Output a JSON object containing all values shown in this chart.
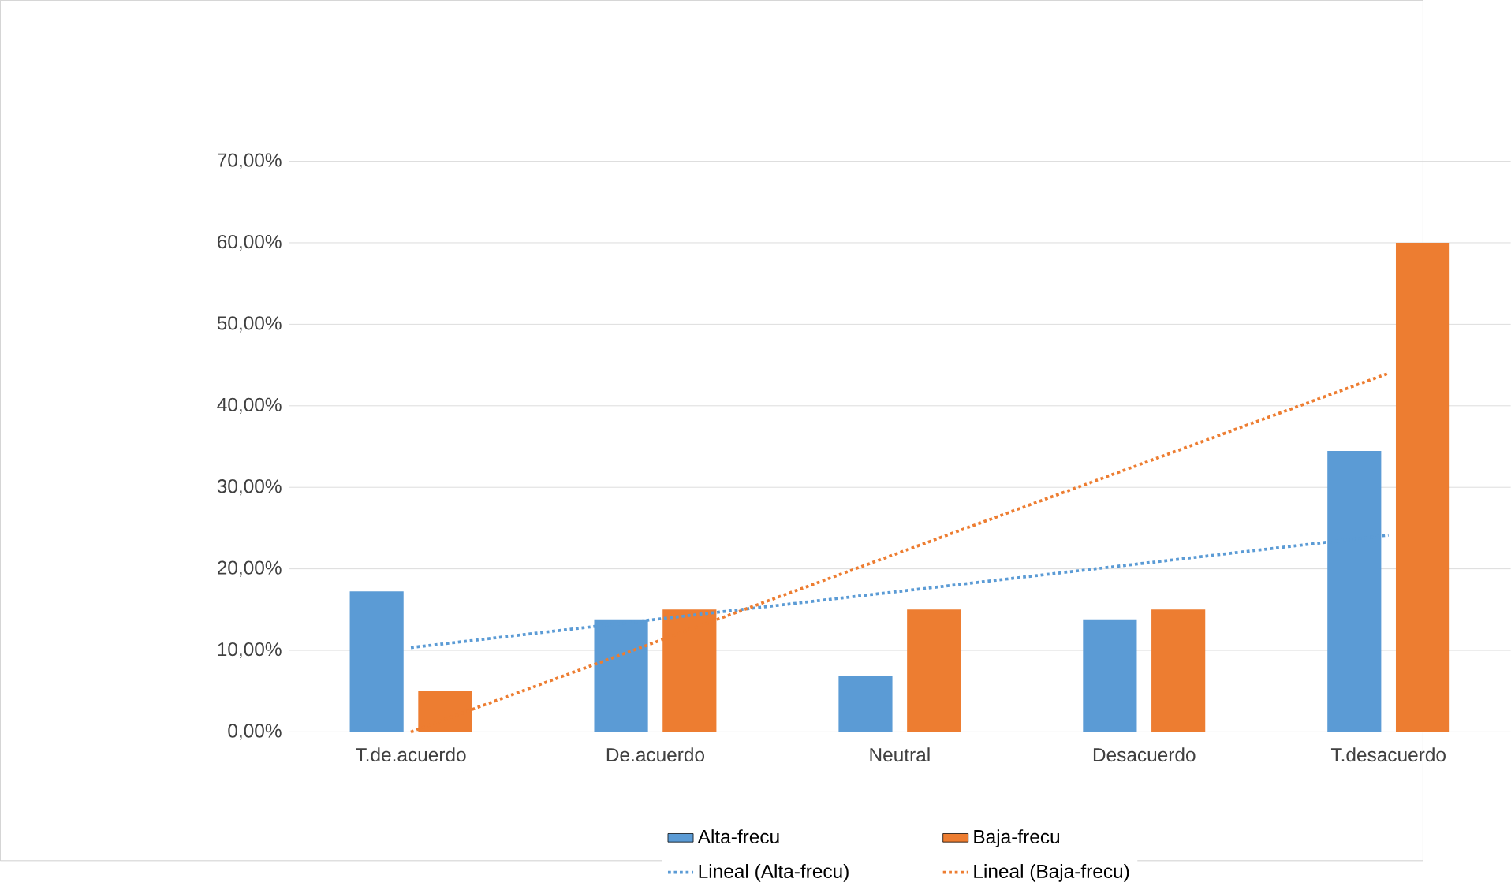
{
  "chart_data": {
    "type": "bar",
    "categories": [
      "T.de.acuerdo",
      "De.acuerdo",
      "Neutral",
      "Desacuerdo",
      "T.desacuerdo"
    ],
    "series": [
      {
        "name": "Alta-frecu",
        "color": "#5b9bd5",
        "values": [
          17.24,
          13.79,
          6.9,
          13.79,
          34.48
        ]
      },
      {
        "name": "Baja-frecu",
        "color": "#ed7d31",
        "values": [
          5,
          15,
          15,
          15,
          60
        ]
      },
      {
        "name": "Lineal (Alta-frecu)",
        "type": "line",
        "line_style": "dotted",
        "color": "#5b9bd5",
        "values": [
          10.34,
          13.79,
          17.24,
          20.69,
          24.14
        ]
      },
      {
        "name": "Lineal (Baja-frecu)",
        "type": "line",
        "line_style": "dotted",
        "color": "#ed7d31",
        "values": [
          0,
          11,
          22,
          33,
          44
        ]
      }
    ],
    "ylim": [
      0,
      70
    ],
    "yticks": [
      {
        "value": 0,
        "label": "0,00%"
      },
      {
        "value": 10,
        "label": "10,00%"
      },
      {
        "value": 20,
        "label": "20,00%"
      },
      {
        "value": 30,
        "label": "30,00%"
      },
      {
        "value": 40,
        "label": "40,00%"
      },
      {
        "value": 50,
        "label": "50,00%"
      },
      {
        "value": 60,
        "label": "60,00%"
      },
      {
        "value": 70,
        "label": "70,00%"
      }
    ],
    "grid": "y",
    "legend": "bottom"
  }
}
